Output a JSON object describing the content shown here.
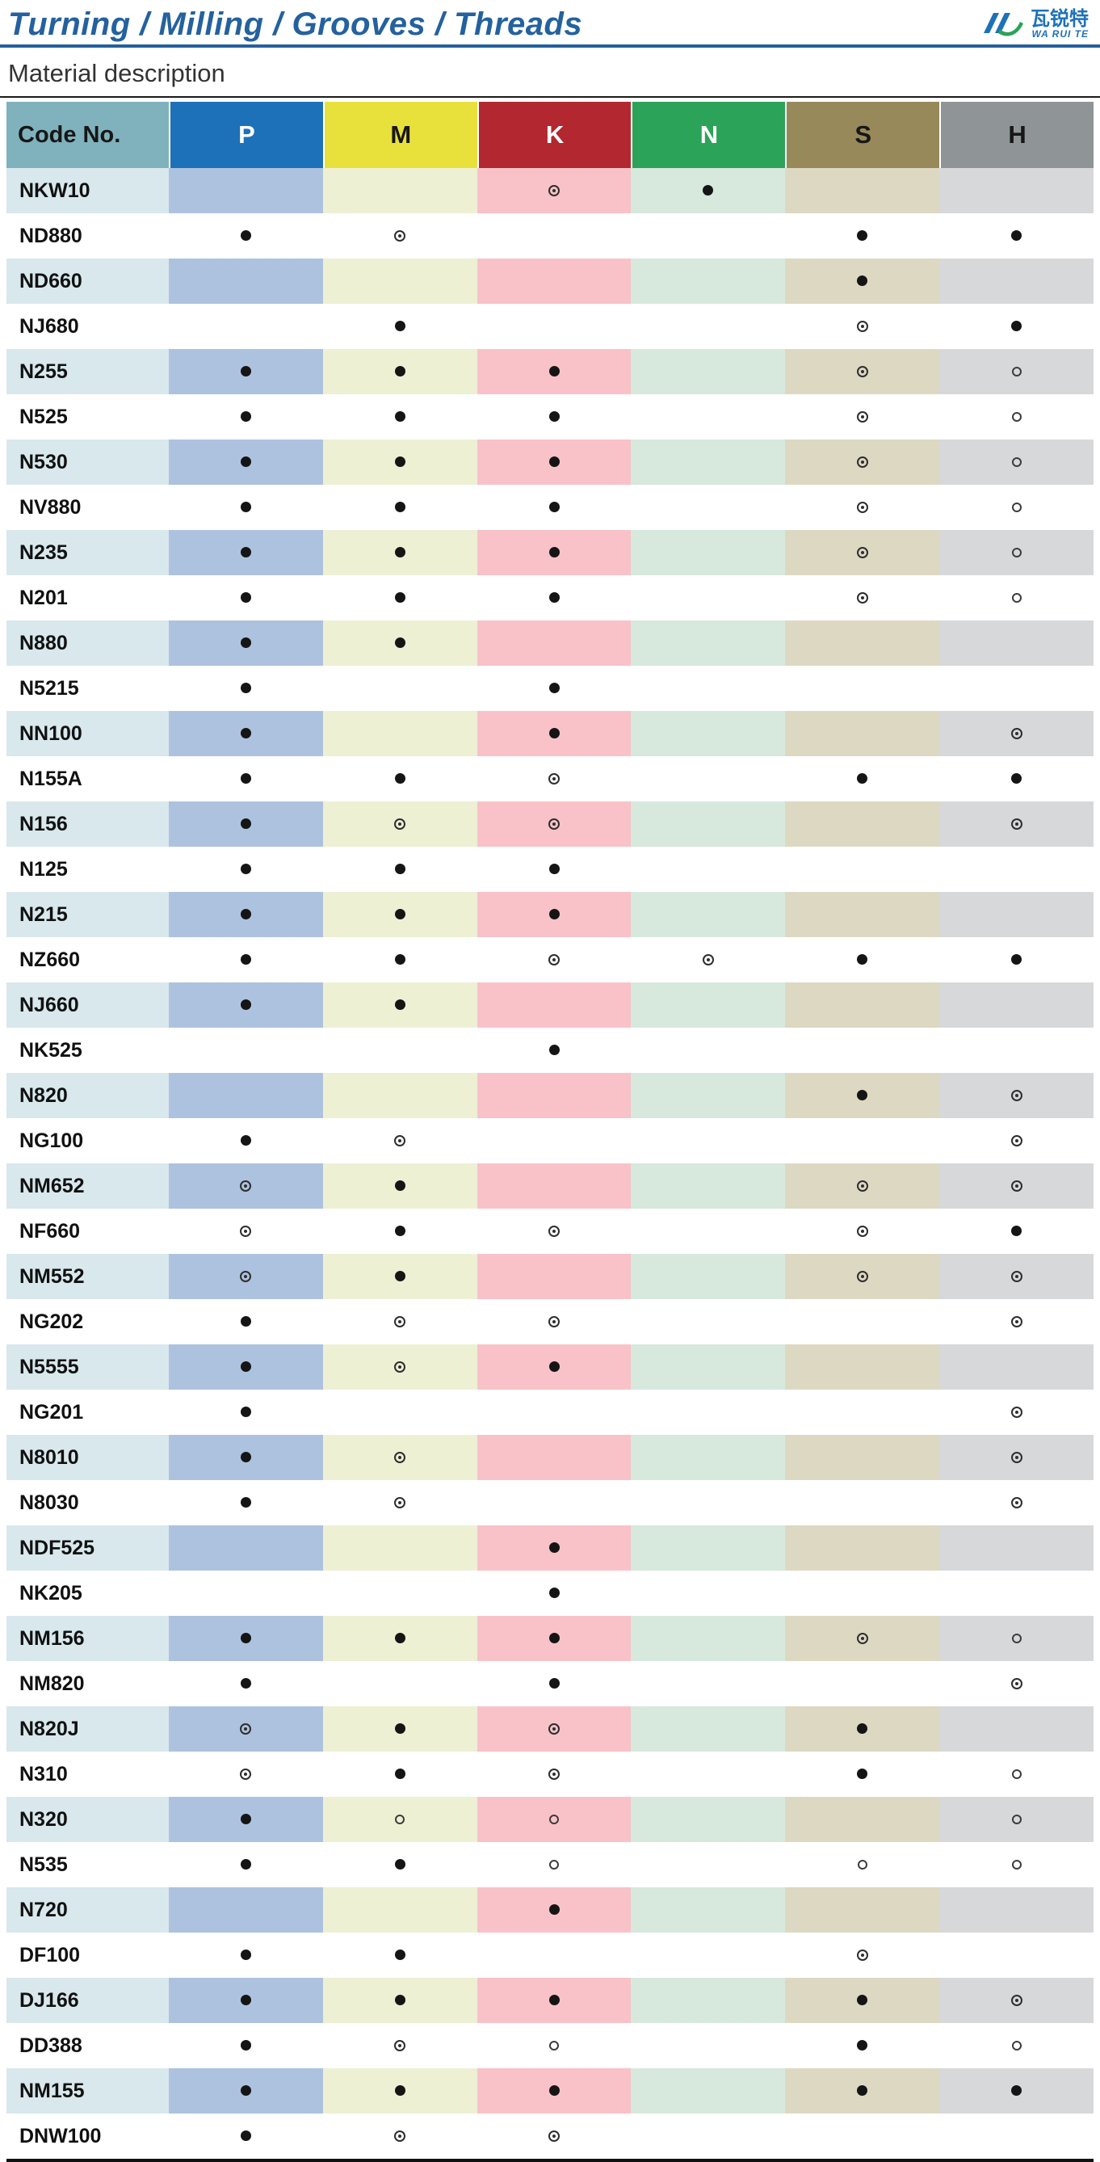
{
  "page": {
    "title": "Turning / Milling / Grooves / Threads",
    "section_heading": "Material description"
  },
  "logo": {
    "brand_chinese": "瓦锐特",
    "brand_latin": "WA RUI TE",
    "colors": {
      "blue": "#1d71b8",
      "green": "#2ba358"
    }
  },
  "markers": {
    "filled": "●",
    "double": "◎",
    "open": "○"
  },
  "table": {
    "columns": [
      {
        "key": "code",
        "label": "Code No.",
        "header_bg": "#7fb2bc",
        "header_fg": "#171717",
        "tint": "#d8e8ed"
      },
      {
        "key": "P",
        "label": "P",
        "header_bg": "#1d71b8",
        "header_fg": "#ffffff",
        "tint": "#adc2de"
      },
      {
        "key": "M",
        "label": "M",
        "header_bg": "#e8e13c",
        "header_fg": "#171717",
        "tint": "#eef0d4"
      },
      {
        "key": "K",
        "label": "K",
        "header_bg": "#b22730",
        "header_fg": "#ffffff",
        "tint": "#f8c2c8"
      },
      {
        "key": "N",
        "label": "N",
        "header_bg": "#2ba358",
        "header_fg": "#ffffff",
        "tint": "#d7e8dd"
      },
      {
        "key": "S",
        "label": "S",
        "header_bg": "#97895a",
        "header_fg": "#171717",
        "tint": "#ddd8c2"
      },
      {
        "key": "H",
        "label": "H",
        "header_bg": "#8f9497",
        "header_fg": "#171717",
        "tint": "#d7d8da"
      }
    ],
    "rows": [
      {
        "code": "NKW10",
        "P": "",
        "M": "",
        "K": "double",
        "N": "filled",
        "S": "",
        "H": ""
      },
      {
        "code": "ND880",
        "P": "filled",
        "M": "double",
        "K": "",
        "N": "",
        "S": "filled",
        "H": "filled"
      },
      {
        "code": "ND660",
        "P": "",
        "M": "",
        "K": "",
        "N": "",
        "S": "filled",
        "H": ""
      },
      {
        "code": "NJ680",
        "P": "",
        "M": "filled",
        "K": "",
        "N": "",
        "S": "double",
        "H": "filled"
      },
      {
        "code": "N255",
        "P": "filled",
        "M": "filled",
        "K": "filled",
        "N": "",
        "S": "double",
        "H": "open"
      },
      {
        "code": "N525",
        "P": "filled",
        "M": "filled",
        "K": "filled",
        "N": "",
        "S": "double",
        "H": "open"
      },
      {
        "code": "N530",
        "P": "filled",
        "M": "filled",
        "K": "filled",
        "N": "",
        "S": "double",
        "H": "open"
      },
      {
        "code": "NV880",
        "P": "filled",
        "M": "filled",
        "K": "filled",
        "N": "",
        "S": "double",
        "H": "open"
      },
      {
        "code": "N235",
        "P": "filled",
        "M": "filled",
        "K": "filled",
        "N": "",
        "S": "double",
        "H": "open"
      },
      {
        "code": "N201",
        "P": "filled",
        "M": "filled",
        "K": "filled",
        "N": "",
        "S": "double",
        "H": "open"
      },
      {
        "code": "N880",
        "P": "filled",
        "M": "filled",
        "K": "",
        "N": "",
        "S": "",
        "H": ""
      },
      {
        "code": "N5215",
        "P": "filled",
        "M": "",
        "K": "filled",
        "N": "",
        "S": "",
        "H": ""
      },
      {
        "code": "NN100",
        "P": "filled",
        "M": "",
        "K": "filled",
        "N": "",
        "S": "",
        "H": "double"
      },
      {
        "code": "N155A",
        "P": "filled",
        "M": "filled",
        "K": "double",
        "N": "",
        "S": "filled",
        "H": "filled"
      },
      {
        "code": "N156",
        "P": "filled",
        "M": "double",
        "K": "double",
        "N": "",
        "S": "",
        "H": "double"
      },
      {
        "code": "N125",
        "P": "filled",
        "M": "filled",
        "K": "filled",
        "N": "",
        "S": "",
        "H": ""
      },
      {
        "code": "N215",
        "P": "filled",
        "M": "filled",
        "K": "filled",
        "N": "",
        "S": "",
        "H": ""
      },
      {
        "code": "NZ660",
        "P": "filled",
        "M": "filled",
        "K": "double",
        "N": "double",
        "S": "filled",
        "H": "filled"
      },
      {
        "code": "NJ660",
        "P": "filled",
        "M": "filled",
        "K": "",
        "N": "",
        "S": "",
        "H": ""
      },
      {
        "code": "NK525",
        "P": "",
        "M": "",
        "K": "filled",
        "N": "",
        "S": "",
        "H": ""
      },
      {
        "code": "N820",
        "P": "",
        "M": "",
        "K": "",
        "N": "",
        "S": "filled",
        "H": "double"
      },
      {
        "code": "NG100",
        "P": "filled",
        "M": "double",
        "K": "",
        "N": "",
        "S": "",
        "H": "double"
      },
      {
        "code": "NM652",
        "P": "double",
        "M": "filled",
        "K": "",
        "N": "",
        "S": "double",
        "H": "double"
      },
      {
        "code": "NF660",
        "P": "double",
        "M": "filled",
        "K": "double",
        "N": "",
        "S": "double",
        "H": "filled"
      },
      {
        "code": "NM552",
        "P": "double",
        "M": "filled",
        "K": "",
        "N": "",
        "S": "double",
        "H": "double"
      },
      {
        "code": "NG202",
        "P": "filled",
        "M": "double",
        "K": "double",
        "N": "",
        "S": "",
        "H": "double"
      },
      {
        "code": "N5555",
        "P": "filled",
        "M": "double",
        "K": "filled",
        "N": "",
        "S": "",
        "H": ""
      },
      {
        "code": "NG201",
        "P": "filled",
        "M": "",
        "K": "",
        "N": "",
        "S": "",
        "H": "double"
      },
      {
        "code": "N8010",
        "P": "filled",
        "M": "double",
        "K": "",
        "N": "",
        "S": "",
        "H": "double"
      },
      {
        "code": "N8030",
        "P": "filled",
        "M": "double",
        "K": "",
        "N": "",
        "S": "",
        "H": "double"
      },
      {
        "code": "NDF525",
        "P": "",
        "M": "",
        "K": "filled",
        "N": "",
        "S": "",
        "H": ""
      },
      {
        "code": "NK205",
        "P": "",
        "M": "",
        "K": "filled",
        "N": "",
        "S": "",
        "H": ""
      },
      {
        "code": "NM156",
        "P": "filled",
        "M": "filled",
        "K": "filled",
        "N": "",
        "S": "double",
        "H": "open"
      },
      {
        "code": "NM820",
        "P": "filled",
        "M": "",
        "K": "filled",
        "N": "",
        "S": "",
        "H": "double"
      },
      {
        "code": "N820J",
        "P": "double",
        "M": "filled",
        "K": "double",
        "N": "",
        "S": "filled",
        "H": ""
      },
      {
        "code": "N310",
        "P": "double",
        "M": "filled",
        "K": "double",
        "N": "",
        "S": "filled",
        "H": "open"
      },
      {
        "code": "N320",
        "P": "filled",
        "M": "open",
        "K": "open",
        "N": "",
        "S": "",
        "H": "open"
      },
      {
        "code": "N535",
        "P": "filled",
        "M": "filled",
        "K": "open",
        "N": "",
        "S": "open",
        "H": "open"
      },
      {
        "code": "N720",
        "P": "",
        "M": "",
        "K": "filled",
        "N": "",
        "S": "",
        "H": ""
      },
      {
        "code": "DF100",
        "P": "filled",
        "M": "filled",
        "K": "",
        "N": "",
        "S": "double",
        "H": ""
      },
      {
        "code": "DJ166",
        "P": "filled",
        "M": "filled",
        "K": "filled",
        "N": "",
        "S": "filled",
        "H": "double"
      },
      {
        "code": "DD388",
        "P": "filled",
        "M": "double",
        "K": "open",
        "N": "",
        "S": "filled",
        "H": "open"
      },
      {
        "code": "NM155",
        "P": "filled",
        "M": "filled",
        "K": "filled",
        "N": "",
        "S": "filled",
        "H": "filled"
      },
      {
        "code": "DNW100",
        "P": "filled",
        "M": "double",
        "K": "double",
        "N": "",
        "S": "",
        "H": ""
      }
    ]
  }
}
